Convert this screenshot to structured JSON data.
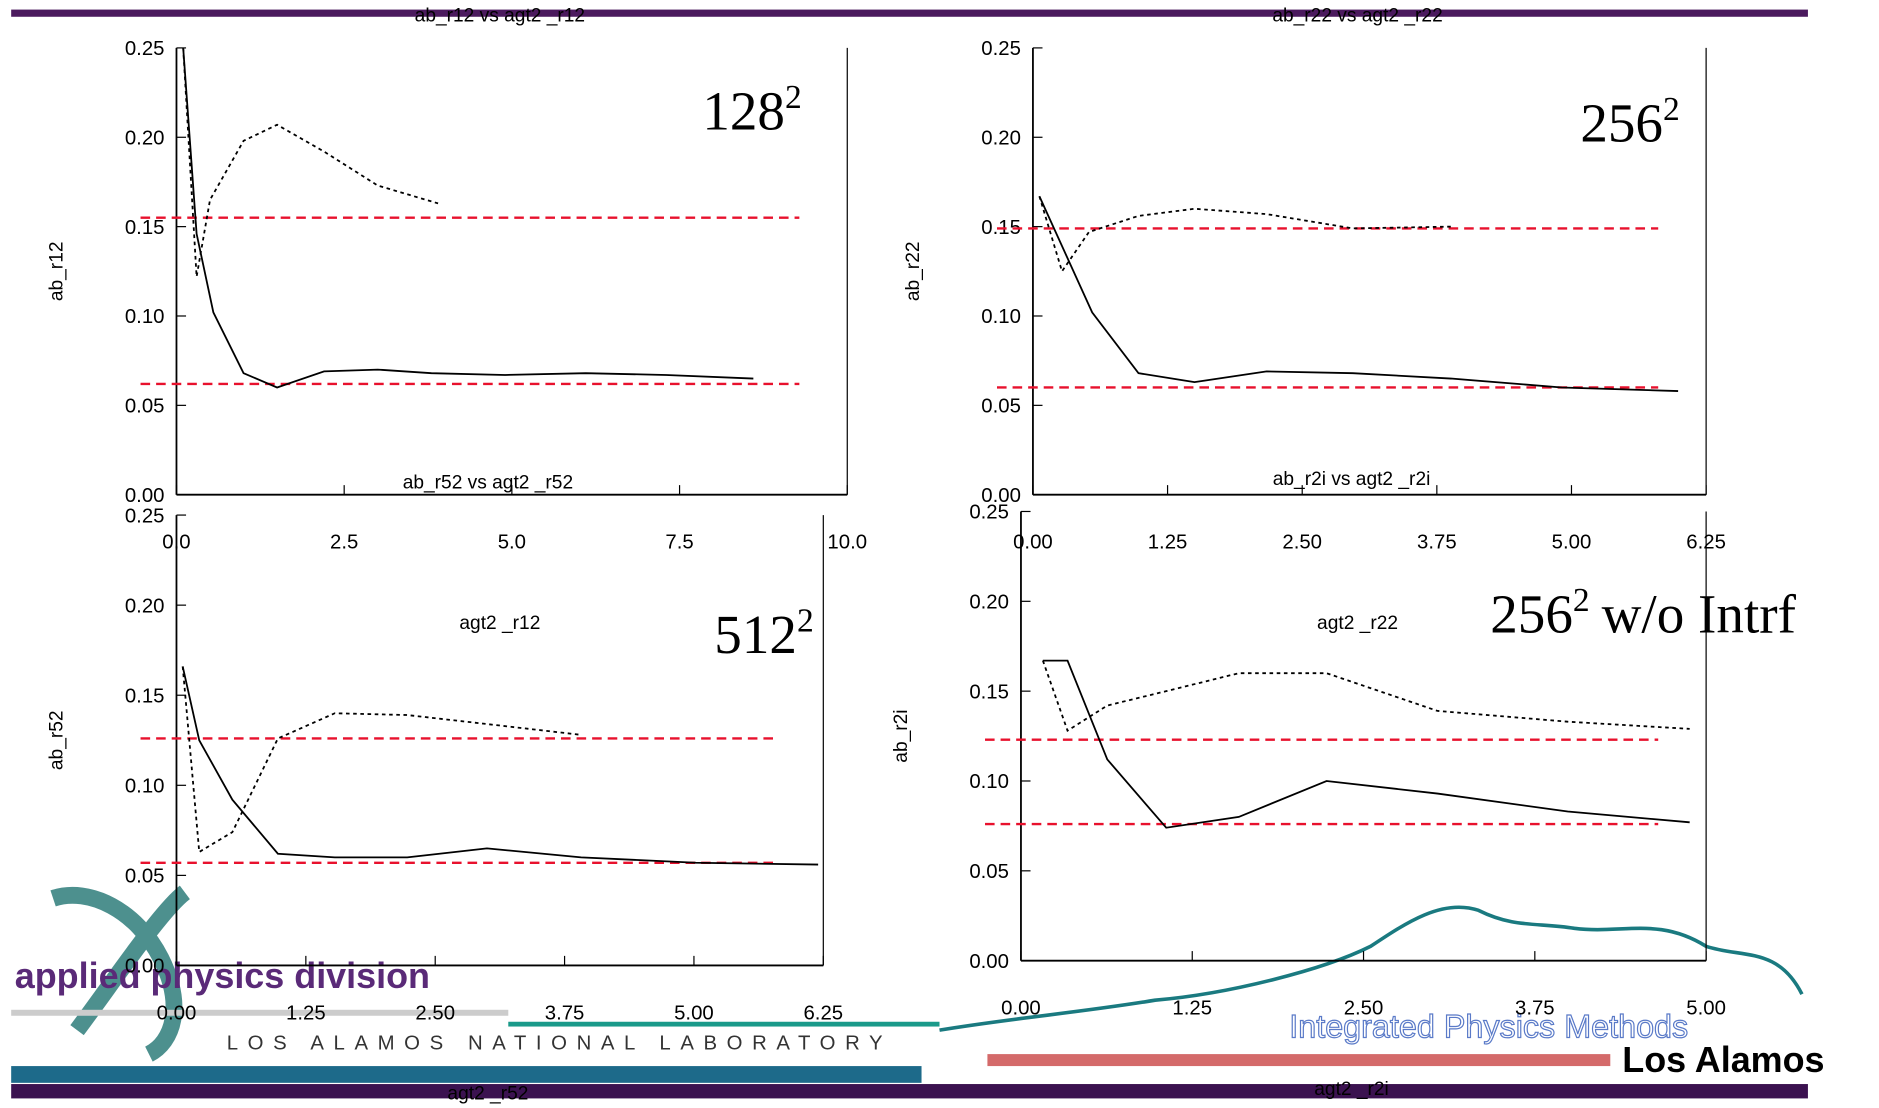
{
  "chart_data": [
    {
      "type": "line",
      "title": "ab_r12 vs agt2 _r12",
      "ylabel": "ab_r12",
      "xlabel": "agt2 _r12",
      "annotation": {
        "base": "128",
        "sup": "2"
      },
      "xlim": [
        0,
        10
      ],
      "xticks": [
        {
          "value": 0,
          "label": "0.0"
        },
        2.5,
        {
          "value": 5,
          "label": "5.0"
        },
        7.5,
        {
          "value": 10,
          "label": "10.0"
        }
      ],
      "ylim": [
        0,
        0.25
      ],
      "yticks": [
        {
          "value": 0,
          "label": "0.00"
        },
        0.05,
        {
          "value": 0.1,
          "label": "0.10"
        },
        0.15,
        {
          "value": 0.2,
          "label": "0.20"
        },
        0.25
      ],
      "series": [
        {
          "style": "solid",
          "color": "#000000",
          "x": [
            0.1,
            0.3,
            0.55,
            1.0,
            1.5,
            2.2,
            3.0,
            3.8,
            4.9,
            6.1,
            7.3,
            8.6
          ],
          "values": [
            0.25,
            0.146,
            0.102,
            0.068,
            0.06,
            0.069,
            0.07,
            0.068,
            0.067,
            0.068,
            0.067,
            0.065
          ]
        },
        {
          "style": "dotted",
          "color": "#000000",
          "x": [
            0.1,
            0.3,
            0.5,
            1.0,
            1.5,
            2.2,
            3.0,
            3.9
          ],
          "values": [
            0.25,
            0.122,
            0.165,
            0.198,
            0.207,
            0.192,
            0.173,
            0.163
          ]
        }
      ],
      "hlines": [
        {
          "value": 0.155,
          "color": "#e8112d"
        },
        {
          "value": 0.062,
          "color": "#e8112d"
        }
      ]
    },
    {
      "type": "line",
      "title": "ab_r22 vs agt2 _r22",
      "ylabel": "ab_r22",
      "xlabel": "agt2 _r22",
      "annotation": {
        "base": "256",
        "sup": "2"
      },
      "xlim": [
        0,
        6.25
      ],
      "xticks": [
        {
          "value": 0,
          "label": "0.00"
        },
        1.25,
        {
          "value": 2.5,
          "label": "2.50"
        },
        3.75,
        {
          "value": 5,
          "label": "5.00"
        },
        6.25
      ],
      "ylim": [
        0,
        0.25
      ],
      "yticks": [
        {
          "value": 0,
          "label": "0.00"
        },
        0.05,
        {
          "value": 0.1,
          "label": "0.10"
        },
        0.15,
        {
          "value": 0.2,
          "label": "0.20"
        },
        0.25
      ],
      "series": [
        {
          "style": "solid",
          "color": "#000000",
          "x": [
            0.06,
            0.55,
            0.98,
            1.5,
            2.17,
            2.97,
            3.88,
            4.91,
            5.99
          ],
          "values": [
            0.167,
            0.102,
            0.068,
            0.063,
            0.069,
            0.068,
            0.065,
            0.06,
            0.058
          ]
        },
        {
          "style": "dotted",
          "color": "#000000",
          "x": [
            0.06,
            0.27,
            0.52,
            0.98,
            1.5,
            2.17,
            2.97,
            3.88
          ],
          "values": [
            0.167,
            0.125,
            0.147,
            0.156,
            0.16,
            0.157,
            0.149,
            0.15
          ]
        }
      ],
      "hlines": [
        {
          "value": 0.149,
          "color": "#e8112d"
        },
        {
          "value": 0.06,
          "color": "#e8112d"
        }
      ]
    },
    {
      "type": "line",
      "title": "ab_r52 vs agt2 _r52",
      "ylabel": "ab_r52",
      "xlabel": "agt2 _r52",
      "annotation": {
        "base": "512",
        "sup": "2"
      },
      "xlim": [
        0,
        6.25
      ],
      "xticks": [
        {
          "value": 0,
          "label": "0.00"
        },
        1.25,
        {
          "value": 2.5,
          "label": "2.50"
        },
        3.75,
        {
          "value": 5,
          "label": "5.00"
        },
        6.25
      ],
      "ylim": [
        0,
        0.25
      ],
      "yticks": [
        {
          "value": 0,
          "label": "0.00"
        },
        0.05,
        {
          "value": 0.1,
          "label": "0.10"
        },
        0.15,
        {
          "value": 0.2,
          "label": "0.20"
        },
        0.25
      ],
      "series": [
        {
          "style": "solid",
          "color": "#000000",
          "x": [
            0.06,
            0.22,
            0.54,
            0.98,
            1.53,
            2.23,
            3.0,
            3.91,
            5.02,
            6.2
          ],
          "values": [
            0.166,
            0.125,
            0.092,
            0.062,
            0.06,
            0.06,
            0.065,
            0.06,
            0.057,
            0.056
          ]
        },
        {
          "style": "dotted",
          "color": "#000000",
          "x": [
            0.06,
            0.22,
            0.54,
            0.98,
            1.53,
            2.23,
            3.0,
            3.91
          ],
          "values": [
            0.166,
            0.063,
            0.074,
            0.126,
            0.14,
            0.139,
            0.134,
            0.128
          ]
        }
      ],
      "hlines": [
        {
          "value": 0.126,
          "color": "#e8112d"
        },
        {
          "value": 0.057,
          "color": "#e8112d"
        }
      ]
    },
    {
      "type": "line",
      "title": "ab_r2i vs agt2 _r2i",
      "ylabel": "ab_r2i",
      "xlabel": "agt2 _r2i",
      "annotation": {
        "base": "256",
        "sup": "2",
        "suffix": "w/o Intrf"
      },
      "xlim": [
        0,
        5
      ],
      "xticks": [
        {
          "value": 0,
          "label": "0.00"
        },
        1.25,
        {
          "value": 2.5,
          "label": "2.50"
        },
        3.75,
        {
          "value": 5,
          "label": "5.00"
        }
      ],
      "ylim": [
        0,
        0.25
      ],
      "yticks": [
        {
          "value": 0,
          "label": "0.00"
        },
        0.05,
        {
          "value": 0.1,
          "label": "0.10"
        },
        0.15,
        {
          "value": 0.2,
          "label": "0.20"
        },
        0.25
      ],
      "series": [
        {
          "style": "solid",
          "color": "#000000",
          "x": [
            0.16,
            0.34,
            0.63,
            1.06,
            1.59,
            2.23,
            3.04,
            3.99,
            4.88
          ],
          "values": [
            0.167,
            0.167,
            0.112,
            0.074,
            0.08,
            0.1,
            0.093,
            0.083,
            0.077
          ]
        },
        {
          "style": "dotted",
          "color": "#000000",
          "x": [
            0.16,
            0.34,
            0.63,
            1.06,
            1.59,
            2.23,
            3.04,
            3.99,
            4.88
          ],
          "values": [
            0.167,
            0.128,
            0.142,
            0.15,
            0.16,
            0.16,
            0.139,
            0.133,
            0.129
          ]
        }
      ],
      "hlines": [
        {
          "value": 0.123,
          "color": "#e8112d"
        },
        {
          "value": 0.076,
          "color": "#e8112d"
        }
      ]
    }
  ],
  "branding": {
    "division": "applied physics division",
    "lab": "LOS ALAMOS NATIONAL LABORATORY",
    "group": "Integrated Physics Methods",
    "org": "Los Alamos"
  }
}
